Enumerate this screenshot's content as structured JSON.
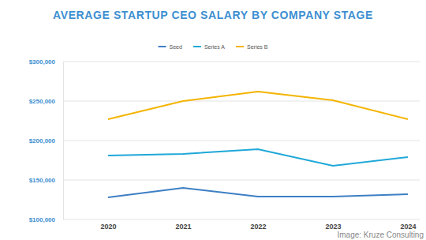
{
  "chart_data": {
    "type": "line",
    "title": "AVERAGE STARTUP CEO SALARY BY COMPANY STAGE",
    "categories": [
      "2020",
      "2021",
      "2022",
      "2023",
      "2024"
    ],
    "series": [
      {
        "name": "Seed",
        "color": "#3d7fc4",
        "values": [
          128000,
          140000,
          129000,
          129000,
          132000
        ]
      },
      {
        "name": "Series A",
        "color": "#1fa8d8",
        "values": [
          181000,
          183000,
          189000,
          168000,
          179000
        ]
      },
      {
        "name": "Series B",
        "color": "#f4b400",
        "values": [
          227000,
          250000,
          262000,
          251000,
          227000
        ]
      }
    ],
    "ylim": [
      100000,
      300000
    ],
    "yticks": [
      {
        "value": 100000,
        "label": "$100,000"
      },
      {
        "value": 150000,
        "label": "$150,000"
      },
      {
        "value": 200000,
        "label": "$200,000"
      },
      {
        "value": 250000,
        "label": "$250,000"
      },
      {
        "value": 300000,
        "label": "$300,000"
      }
    ],
    "grid": true,
    "legend": "top",
    "annotations": [
      "Image: Kruze Consulting"
    ]
  }
}
